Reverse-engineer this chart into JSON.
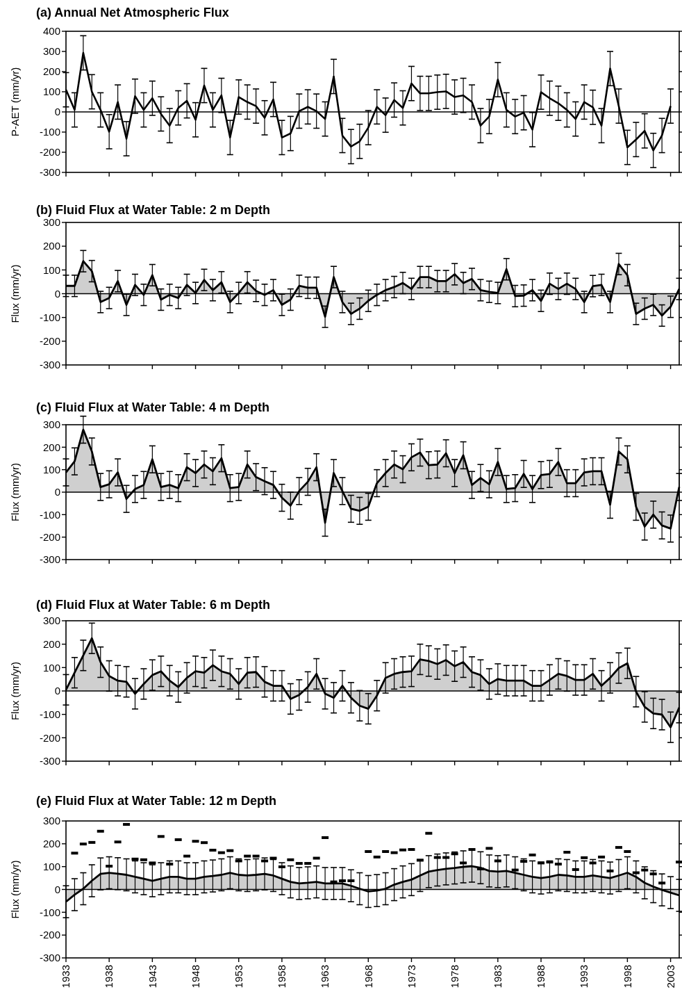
{
  "chart_data": [
    {
      "type": "line",
      "title": "(a)  Annual Net Atmospheric Flux",
      "ylabel": "P-AET (mm/yr)",
      "xlim": [
        1933,
        2004
      ],
      "xticks": [
        1933,
        1938,
        1943,
        1948,
        1953,
        1958,
        1963,
        1968,
        1973,
        1978,
        1983,
        1988,
        1993,
        1998,
        2003
      ],
      "ylim": [
        -300,
        400
      ],
      "yticks": [
        -300,
        -200,
        -100,
        0,
        100,
        200,
        300,
        400
      ],
      "tick_labels": "y",
      "ref_lines": [
        {
          "axis": "y",
          "value": 0
        }
      ],
      "x": [
        1933,
        1934,
        1935,
        1936,
        1937,
        1938,
        1939,
        1940,
        1941,
        1942,
        1943,
        1944,
        1945,
        1946,
        1947,
        1948,
        1949,
        1950,
        1951,
        1952,
        1953,
        1954,
        1955,
        1956,
        1957,
        1958,
        1959,
        1960,
        1961,
        1962,
        1963,
        1964,
        1965,
        1966,
        1967,
        1968,
        1969,
        1970,
        1971,
        1972,
        1973,
        1974,
        1975,
        1976,
        1977,
        1978,
        1979,
        1980,
        1981,
        1982,
        1983,
        1984,
        1985,
        1986,
        1987,
        1988,
        1989,
        1990,
        1991,
        1992,
        1993,
        1994,
        1995,
        1996,
        1997,
        1998,
        1999,
        2000,
        2001,
        2002,
        2003
      ],
      "series": [
        {
          "color": "#000000",
          "values": [
            110,
            10,
            293,
            100,
            10,
            -98,
            49,
            -133,
            78,
            10,
            68,
            -10,
            -68,
            20,
            55,
            -39,
            131,
            10,
            82,
            -127,
            74,
            49,
            29,
            -29,
            62,
            -127,
            -107,
            4,
            25,
            4,
            -35,
            176,
            -117,
            -172,
            -146,
            -78,
            25,
            -16,
            59,
            20,
            141,
            92,
            92,
            98,
            102,
            74,
            82,
            49,
            -68,
            -23,
            160,
            10,
            -23,
            -4,
            -88,
            98,
            68,
            43,
            10,
            -35,
            49,
            23,
            -68,
            215,
            29,
            -176,
            -137,
            -94,
            -191,
            -117,
            29
          ],
          "errors": [
            85,
            85,
            85,
            85,
            85,
            85,
            85,
            85,
            85,
            85,
            85,
            85,
            85,
            85,
            85,
            85,
            85,
            85,
            85,
            85,
            85,
            85,
            85,
            85,
            85,
            85,
            85,
            85,
            85,
            85,
            85,
            85,
            85,
            85,
            85,
            85,
            85,
            85,
            85,
            85,
            85,
            85,
            85,
            85,
            85,
            85,
            85,
            85,
            85,
            85,
            85,
            85,
            85,
            85,
            85,
            85,
            85,
            85,
            85,
            85,
            85,
            85,
            85,
            85,
            85,
            85,
            85,
            85,
            85,
            85,
            85
          ]
        }
      ]
    },
    {
      "type": "area",
      "title": "(b)  Fluid Flux at Water Table: 2 m Depth",
      "ylabel": "Flux (mm/yr)",
      "xlim": [
        1933,
        2004
      ],
      "xticks": [
        1933,
        1938,
        1943,
        1948,
        1953,
        1958,
        1963,
        1968,
        1973,
        1978,
        1983,
        1988,
        1993,
        1998,
        2003
      ],
      "ylim": [
        -300,
        300
      ],
      "yticks": [
        -300,
        -200,
        -100,
        0,
        100,
        200,
        300
      ],
      "tick_labels": "y",
      "ref_lines": [
        {
          "axis": "y",
          "value": 0
        }
      ],
      "x": [
        1933,
        1934,
        1935,
        1936,
        1937,
        1938,
        1939,
        1940,
        1941,
        1942,
        1943,
        1944,
        1945,
        1946,
        1947,
        1948,
        1949,
        1950,
        1951,
        1952,
        1953,
        1954,
        1955,
        1956,
        1957,
        1958,
        1959,
        1960,
        1961,
        1962,
        1963,
        1964,
        1965,
        1966,
        1967,
        1968,
        1969,
        1970,
        1971,
        1972,
        1973,
        1974,
        1975,
        1976,
        1977,
        1978,
        1979,
        1980,
        1981,
        1982,
        1983,
        1984,
        1985,
        1986,
        1987,
        1988,
        1989,
        1990,
        1991,
        1992,
        1993,
        1994,
        1995,
        1996,
        1997,
        1998,
        1999,
        2000,
        2001,
        2002,
        2003,
        2004
      ],
      "series": [
        {
          "color": "#000000",
          "values": [
            33,
            33,
            137,
            95,
            -35,
            -18,
            53,
            -47,
            37,
            -5,
            78,
            -25,
            -5,
            -18,
            37,
            3,
            58,
            15,
            48,
            -35,
            3,
            48,
            12,
            -5,
            15,
            -47,
            -25,
            33,
            25,
            25,
            -97,
            70,
            -35,
            -85,
            -63,
            -30,
            -5,
            15,
            28,
            45,
            20,
            70,
            70,
            53,
            53,
            82,
            45,
            62,
            15,
            8,
            3,
            103,
            -10,
            -8,
            15,
            -30,
            42,
            20,
            42,
            20,
            -35,
            32,
            37,
            -35,
            125,
            78,
            -85,
            -63,
            -47,
            -92,
            -55,
            20
          ],
          "errors": [
            45,
            45,
            45,
            45,
            45,
            45,
            45,
            45,
            45,
            45,
            45,
            45,
            45,
            45,
            45,
            45,
            45,
            45,
            45,
            45,
            45,
            45,
            45,
            45,
            45,
            45,
            45,
            45,
            45,
            45,
            45,
            45,
            45,
            45,
            45,
            45,
            45,
            45,
            45,
            45,
            45,
            45,
            45,
            45,
            45,
            45,
            45,
            45,
            45,
            45,
            45,
            45,
            45,
            45,
            45,
            45,
            45,
            45,
            45,
            45,
            45,
            45,
            45,
            45,
            45,
            45,
            45,
            45,
            45,
            45,
            45,
            45
          ]
        }
      ]
    },
    {
      "type": "area",
      "title": "(c)  Fluid Flux at Water Table: 4 m Depth",
      "ylabel": "Flux (mm/yr)",
      "xlim": [
        1933,
        2004
      ],
      "xticks": [
        1933,
        1938,
        1943,
        1948,
        1953,
        1958,
        1963,
        1968,
        1973,
        1978,
        1983,
        1988,
        1993,
        1998,
        2003
      ],
      "ylim": [
        -300,
        300
      ],
      "yticks": [
        -300,
        -200,
        -100,
        0,
        100,
        200,
        300
      ],
      "tick_labels": "y",
      "ref_lines": [
        {
          "axis": "y",
          "value": 0
        }
      ],
      "x": [
        1933,
        1934,
        1935,
        1936,
        1937,
        1938,
        1939,
        1940,
        1941,
        1942,
        1943,
        1944,
        1945,
        1946,
        1947,
        1948,
        1949,
        1950,
        1951,
        1952,
        1953,
        1954,
        1955,
        1956,
        1957,
        1958,
        1959,
        1960,
        1961,
        1962,
        1963,
        1964,
        1965,
        1966,
        1967,
        1968,
        1969,
        1970,
        1971,
        1972,
        1973,
        1974,
        1975,
        1976,
        1977,
        1978,
        1979,
        1980,
        1981,
        1982,
        1983,
        1984,
        1985,
        1986,
        1987,
        1988,
        1989,
        1990,
        1991,
        1992,
        1993,
        1994,
        1995,
        1996,
        1997,
        1998,
        1999,
        2000,
        2001,
        2002,
        2003,
        2004
      ],
      "series": [
        {
          "color": "#000000",
          "values": [
            88,
            137,
            278,
            181,
            23,
            35,
            88,
            -30,
            14,
            32,
            146,
            23,
            32,
            18,
            111,
            85,
            123,
            93,
            151,
            18,
            23,
            123,
            67,
            49,
            32,
            -25,
            -60,
            5,
            46,
            111,
            -136,
            85,
            5,
            -74,
            -83,
            -65,
            40,
            85,
            123,
            102,
            155,
            176,
            120,
            123,
            173,
            85,
            164,
            32,
            63,
            35,
            134,
            14,
            18,
            81,
            14,
            76,
            81,
            134,
            40,
            40,
            88,
            93,
            93,
            -56,
            181,
            146,
            -65,
            -153,
            -100,
            -148,
            -162,
            23
          ],
          "errors": [
            60,
            60,
            60,
            60,
            60,
            60,
            60,
            60,
            60,
            60,
            60,
            60,
            60,
            60,
            60,
            60,
            60,
            60,
            60,
            60,
            60,
            60,
            60,
            60,
            60,
            60,
            60,
            60,
            60,
            60,
            60,
            60,
            60,
            60,
            60,
            60,
            60,
            60,
            60,
            60,
            60,
            60,
            60,
            60,
            60,
            60,
            60,
            60,
            60,
            60,
            60,
            60,
            60,
            60,
            60,
            60,
            60,
            60,
            60,
            60,
            60,
            60,
            60,
            60,
            60,
            60,
            60,
            60,
            60,
            60,
            60,
            60
          ]
        }
      ]
    },
    {
      "type": "area",
      "title": "(d)  Fluid Flux at Water Table: 6 m Depth",
      "ylabel": "Flux (mm/yr)",
      "xlim": [
        1933,
        2004
      ],
      "xticks": [
        1933,
        1938,
        1943,
        1948,
        1953,
        1958,
        1963,
        1968,
        1973,
        1978,
        1983,
        1988,
        1993,
        1998,
        2003
      ],
      "ylim": [
        -300,
        300
      ],
      "yticks": [
        -300,
        -200,
        -100,
        0,
        100,
        200,
        300
      ],
      "tick_labels": "y",
      "ref_lines": [
        {
          "axis": "y",
          "value": 0
        }
      ],
      "x": [
        1933,
        1934,
        1935,
        1936,
        1937,
        1938,
        1939,
        1940,
        1941,
        1942,
        1943,
        1944,
        1945,
        1946,
        1947,
        1948,
        1949,
        1950,
        1951,
        1952,
        1953,
        1954,
        1955,
        1956,
        1957,
        1958,
        1959,
        1960,
        1961,
        1962,
        1963,
        1964,
        1965,
        1966,
        1967,
        1968,
        1969,
        1970,
        1971,
        1972,
        1973,
        1974,
        1975,
        1976,
        1977,
        1978,
        1979,
        1980,
        1981,
        1982,
        1983,
        1984,
        1985,
        1986,
        1987,
        1988,
        1989,
        1990,
        1991,
        1992,
        1993,
        1994,
        1995,
        1996,
        1997,
        1998,
        1999,
        2000,
        2001,
        2002,
        2003,
        2004
      ],
      "series": [
        {
          "color": "#000000",
          "values": [
            5,
            78,
            152,
            225,
            123,
            64,
            44,
            39,
            -12,
            30,
            68,
            84,
            44,
            17,
            56,
            84,
            78,
            110,
            84,
            73,
            30,
            78,
            81,
            39,
            22,
            22,
            -34,
            -17,
            17,
            73,
            -12,
            -29,
            22,
            -29,
            -63,
            -76,
            -20,
            56,
            73,
            81,
            84,
            135,
            128,
            115,
            132,
            106,
            123,
            81,
            68,
            30,
            51,
            44,
            44,
            44,
            22,
            22,
            47,
            73,
            64,
            47,
            47,
            73,
            22,
            56,
            98,
            118,
            -3,
            -68,
            -96,
            -101,
            -155,
            -71
          ],
          "errors": [
            65,
            65,
            65,
            65,
            65,
            65,
            65,
            65,
            65,
            65,
            65,
            65,
            65,
            65,
            65,
            65,
            65,
            65,
            65,
            65,
            65,
            65,
            65,
            65,
            65,
            65,
            65,
            65,
            65,
            65,
            65,
            65,
            65,
            65,
            65,
            65,
            65,
            65,
            65,
            65,
            65,
            65,
            65,
            65,
            65,
            65,
            65,
            65,
            65,
            65,
            65,
            65,
            65,
            65,
            65,
            65,
            65,
            65,
            65,
            65,
            65,
            65,
            65,
            65,
            65,
            65,
            65,
            65,
            65,
            65,
            65,
            65
          ]
        }
      ]
    },
    {
      "type": "area",
      "title": "(e)  Fluid Flux at Water Table: 12 m Depth",
      "ylabel": "Flux (mm/yr)",
      "xlim": [
        1933,
        2004
      ],
      "xticks": [
        1933,
        1938,
        1943,
        1948,
        1953,
        1958,
        1963,
        1968,
        1973,
        1978,
        1983,
        1988,
        1993,
        1998,
        2003
      ],
      "ylim": [
        -300,
        300
      ],
      "yticks": [
        -300,
        -200,
        -100,
        0,
        100,
        200,
        300
      ],
      "ref_lines": [
        {
          "axis": "y",
          "value": 0
        }
      ],
      "x": [
        1933,
        1934,
        1935,
        1936,
        1937,
        1938,
        1939,
        1940,
        1941,
        1942,
        1943,
        1944,
        1945,
        1946,
        1947,
        1948,
        1949,
        1950,
        1951,
        1952,
        1953,
        1954,
        1955,
        1956,
        1957,
        1958,
        1959,
        1960,
        1961,
        1962,
        1963,
        1964,
        1965,
        1966,
        1967,
        1968,
        1969,
        1970,
        1971,
        1972,
        1973,
        1974,
        1975,
        1976,
        1977,
        1978,
        1979,
        1980,
        1981,
        1982,
        1983,
        1984,
        1985,
        1986,
        1987,
        1988,
        1989,
        1990,
        1991,
        1992,
        1993,
        1994,
        1995,
        1996,
        1997,
        1998,
        1999,
        2000,
        2001,
        2002,
        2003,
        2004
      ],
      "series": [
        {
          "color": "#000000",
          "values": [
            -54,
            -23,
            3,
            38,
            68,
            73,
            69,
            64,
            55,
            47,
            38,
            47,
            55,
            55,
            47,
            47,
            55,
            59,
            64,
            73,
            64,
            61,
            64,
            68,
            61,
            47,
            33,
            26,
            29,
            33,
            26,
            26,
            26,
            16,
            3,
            -9,
            -5,
            3,
            21,
            33,
            43,
            61,
            78,
            85,
            90,
            94,
            99,
            102,
            95,
            81,
            78,
            81,
            73,
            64,
            55,
            50,
            55,
            64,
            61,
            55,
            55,
            61,
            55,
            50,
            61,
            73,
            55,
            29,
            12,
            -2,
            -14,
            -26
          ],
          "errors": [
            70,
            70,
            70,
            70,
            70,
            70,
            70,
            70,
            70,
            70,
            70,
            70,
            70,
            70,
            70,
            70,
            70,
            70,
            70,
            70,
            70,
            70,
            70,
            70,
            70,
            70,
            70,
            70,
            70,
            70,
            70,
            70,
            70,
            70,
            70,
            70,
            70,
            70,
            70,
            70,
            70,
            70,
            70,
            70,
            70,
            70,
            70,
            70,
            70,
            70,
            70,
            70,
            70,
            70,
            70,
            70,
            70,
            70,
            70,
            70,
            70,
            70,
            70,
            70,
            70,
            70,
            70,
            70,
            70,
            70,
            70,
            70
          ]
        },
        {
          "type": "scatter",
          "color": "#000000",
          "values": [
            null,
            159,
            199,
            206,
            255,
            102,
            208,
            285,
            133,
            130,
            116,
            232,
            111,
            218,
            146,
            211,
            205,
            172,
            161,
            170,
            125,
            146,
            146,
            125,
            137,
            99,
            130,
            114,
            114,
            137,
            227,
            33,
            38,
            38,
            null,
            166,
            142,
            166,
            161,
            173,
            175,
            128,
            246,
            140,
            140,
            156,
            116,
            175,
            90,
            180,
            125,
            null,
            85,
            123,
            151,
            116,
            120,
            111,
            163,
            87,
            139,
            116,
            142,
            81,
            184,
            166,
            73,
            85,
            68,
            28,
            null,
            120
          ]
        }
      ]
    }
  ]
}
